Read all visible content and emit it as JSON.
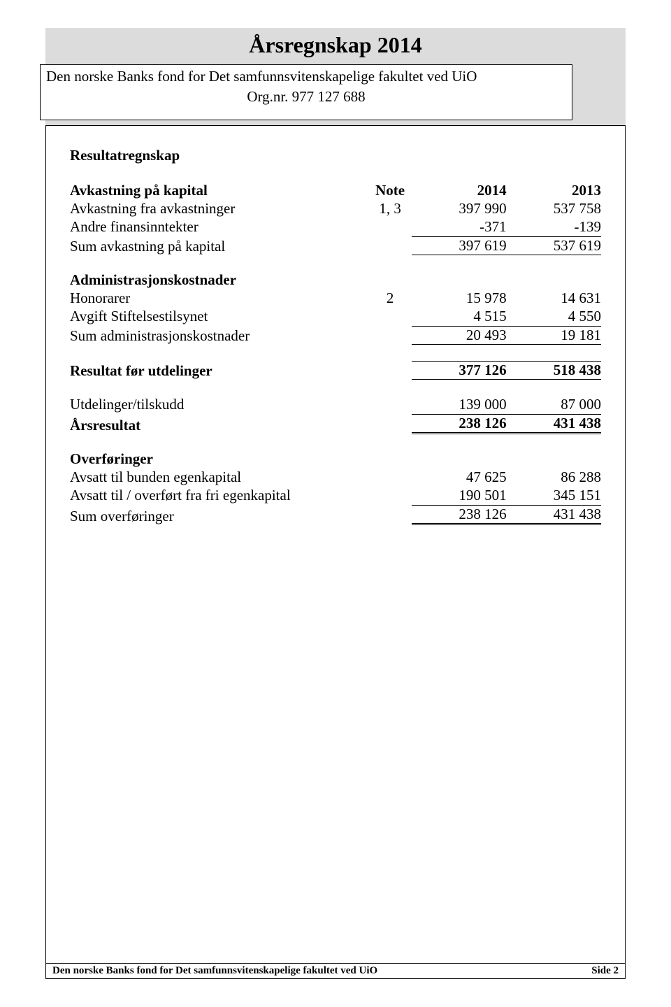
{
  "header": {
    "title": "Årsregnskap 2014",
    "subtitle": "Den norske Banks fond for Det samfunnsvitenskapelige fakultet ved UiO",
    "orgnr": "Org.nr. 977 127 688"
  },
  "table": {
    "section1_title": "Resultatregnskap",
    "headers": {
      "label": "Avkastning på kapital",
      "note": "Note",
      "year1": "2014",
      "year2": "2013"
    },
    "rows": [
      {
        "label": "Avkastning fra avkastninger",
        "note": "1, 3",
        "v1": "397 990",
        "v2": "537 758",
        "bold": false
      },
      {
        "label": "Andre finansinntekter",
        "note": "",
        "v1": "-371",
        "v2": "-139",
        "bold": false
      }
    ],
    "sum1": {
      "label": "Sum avkastning på kapital",
      "v1": "397 619",
      "v2": "537 619"
    },
    "section2_title": "Administrasjonskostnader",
    "rows2": [
      {
        "label": "Honorarer",
        "note": "2",
        "v1": "15 978",
        "v2": "14 631"
      },
      {
        "label": "Avgift Stiftelsestilsynet",
        "note": "",
        "v1": "4 515",
        "v2": "4 550"
      }
    ],
    "sum2": {
      "label": "Sum administrasjonskostnader",
      "v1": "20 493",
      "v2": "19 181"
    },
    "result": {
      "label": "Resultat før utdelinger",
      "v1": "377 126",
      "v2": "518 438"
    },
    "rows3": [
      {
        "label": "Utdelinger/tilskudd",
        "v1": "139 000",
        "v2": "87 000"
      }
    ],
    "annual_result": {
      "label": "Årsresultat",
      "v1": "238 126",
      "v2": "431 438"
    },
    "section3_title": "Overføringer",
    "rows4": [
      {
        "label": "Avsatt til bunden egenkapital",
        "v1": "47 625",
        "v2": "86 288"
      },
      {
        "label": "Avsatt til / overført fra fri egenkapital",
        "v1": "190 501",
        "v2": "345 151"
      }
    ],
    "sum4": {
      "label": "Sum overføringer",
      "v1": "238 126",
      "v2": "431 438"
    }
  },
  "footer": {
    "left": "Den norske Banks fond for Det samfunnsvitenskapelige fakultet ved UiO",
    "right": "Side 2"
  }
}
